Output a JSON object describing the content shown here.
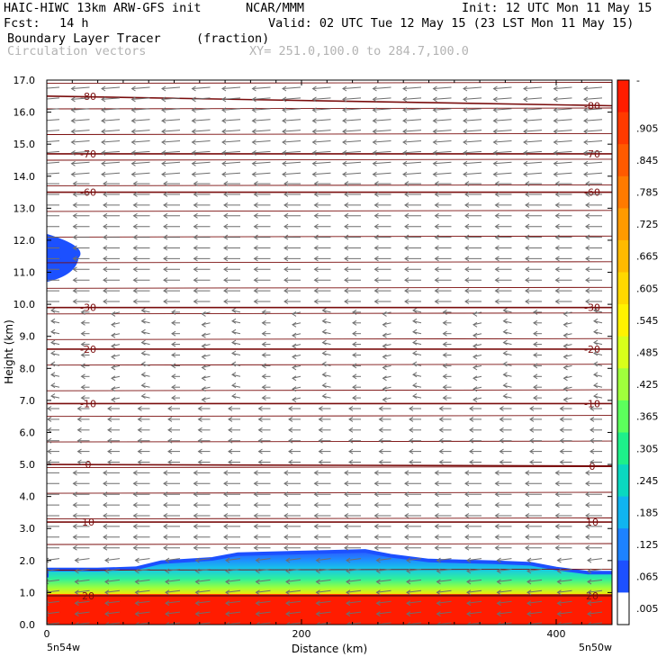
{
  "header": {
    "model": "HAIC-HIWC 13km ARW-GFS init",
    "org": "NCAR/MMM",
    "init": "Init: 12 UTC Mon 11 May 15",
    "fcst_label": "Fcst:",
    "fcst_value": "14 h",
    "valid": "Valid: 02 UTC Tue 12 May 15 (23 LST Mon 11 May 15)",
    "field1_name": "Boundary Layer Tracer",
    "field1_units": "(fraction)",
    "field2_name": "Circulation vectors",
    "cross_section": "XY= 251.0,100.0 to 284.7,100.0"
  },
  "chart_data": {
    "type": "heatmap",
    "title": "Boundary Layer Tracer",
    "xlabel": "Distance (km)",
    "ylabel": "Height (km)",
    "xlim": [
      0,
      425
    ],
    "ylim": [
      0,
      17
    ],
    "x_ticks": [
      0,
      200,
      400
    ],
    "y_ticks": [
      "0.0",
      "1.0",
      "2.0",
      "3.0",
      "4.0",
      "5.0",
      "6.0",
      "7.0",
      "8.0",
      "9.0",
      "10.0",
      "11.0",
      "12.0",
      "13.0",
      "14.0",
      "15.0",
      "16.0",
      "17.0"
    ],
    "endpoints": {
      "left": "5n54w",
      "right": "5n50w"
    },
    "colorbar_labels": [
      "-",
      ".905",
      ".845",
      ".785",
      ".725",
      ".665",
      ".605",
      ".545",
      ".485",
      ".425",
      ".365",
      ".305",
      ".245",
      ".185",
      ".125",
      ".065",
      ".005"
    ],
    "colorbar_colors": [
      "#ff1c00",
      "#ff3a00",
      "#ff5a00",
      "#ff7a00",
      "#ff9a00",
      "#ffba00",
      "#ffd800",
      "#fff200",
      "#d8ff1a",
      "#a0ff3c",
      "#5cff5c",
      "#1ef08a",
      "#0ad8c0",
      "#10b4f0",
      "#1c82ff",
      "#1c50ff",
      "#ffffff"
    ],
    "tracer_top_km": [
      [
        0,
        1.72
      ],
      [
        40,
        1.72
      ],
      [
        70,
        1.76
      ],
      [
        90,
        1.95
      ],
      [
        130,
        2.05
      ],
      [
        150,
        2.2
      ],
      [
        200,
        2.25
      ],
      [
        250,
        2.3
      ],
      [
        270,
        2.15
      ],
      [
        300,
        2.0
      ],
      [
        350,
        1.95
      ],
      [
        380,
        1.9
      ],
      [
        400,
        1.75
      ],
      [
        425,
        1.62
      ]
    ],
    "upper_blob": {
      "x_max_km": 20,
      "z_bottom_km": 10.7,
      "z_top_km": 12.2
    },
    "temperature_contours": [
      {
        "label": "-80",
        "z_left": 16.5,
        "z_right": 16.2
      },
      {
        "label": "-70",
        "z_left": 14.7,
        "z_right": 14.7
      },
      {
        "label": "-60",
        "z_left": 13.5,
        "z_right": 13.5
      },
      {
        "label": "-30",
        "z_left": 9.9,
        "z_right": 9.9
      },
      {
        "label": "-20",
        "z_left": 8.6,
        "z_right": 8.6
      },
      {
        "label": "-10",
        "z_left": 6.9,
        "z_right": 6.9
      },
      {
        "label": "0",
        "z_left": 5.0,
        "z_right": 4.95
      },
      {
        "label": "10",
        "z_left": 3.2,
        "z_right": 3.2
      },
      {
        "label": "20",
        "z_left": 0.9,
        "z_right": 0.9
      }
    ],
    "grid": false
  }
}
